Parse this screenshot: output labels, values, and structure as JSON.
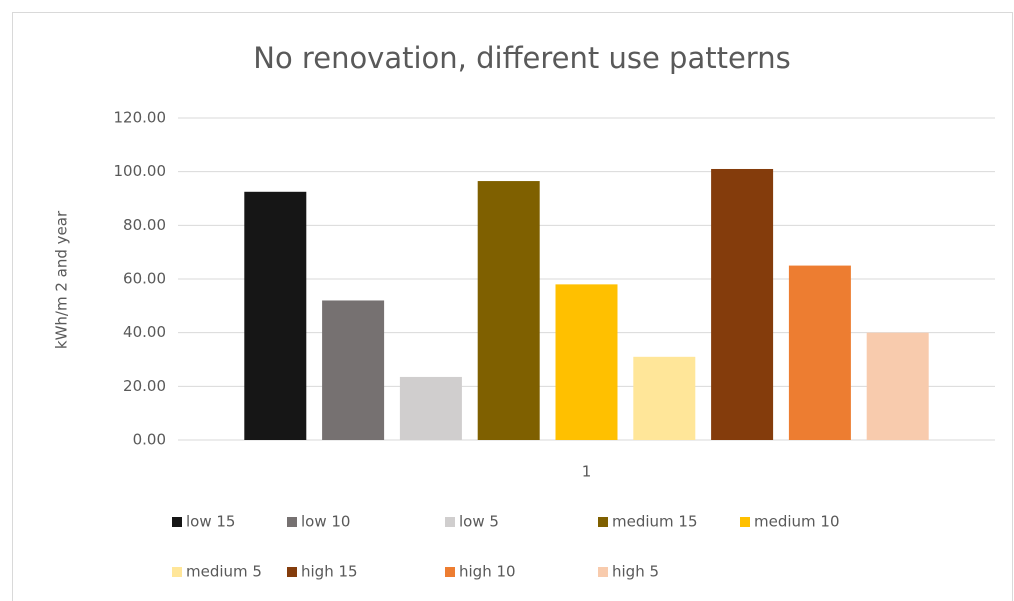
{
  "chart_data": {
    "type": "bar",
    "title": "No renovation, different use patterns",
    "y_label": "kWh/m 2 and year",
    "categories": [
      "1"
    ],
    "series": [
      {
        "name": "low 15",
        "color": "#161616",
        "values": [
          92.5
        ]
      },
      {
        "name": "low 10",
        "color": "#767171",
        "values": [
          52
        ]
      },
      {
        "name": "low 5",
        "color": "#d0cece",
        "values": [
          23.5
        ]
      },
      {
        "name": "medium 15",
        "color": "#7f6000",
        "values": [
          96.5
        ]
      },
      {
        "name": "medium 10",
        "color": "#ffc000",
        "values": [
          58
        ]
      },
      {
        "name": "medium 5",
        "color": "#ffe699",
        "values": [
          31
        ]
      },
      {
        "name": "high 15",
        "color": "#843c0c",
        "values": [
          101
        ]
      },
      {
        "name": "high 10",
        "color": "#ed7d31",
        "values": [
          65
        ]
      },
      {
        "name": "high 5",
        "color": "#f8cbad",
        "values": [
          40
        ]
      }
    ],
    "ylim": [
      0,
      120
    ],
    "yticks": [
      {
        "value": 0,
        "label": "0.00"
      },
      {
        "value": 20,
        "label": "20.00"
      },
      {
        "value": 40,
        "label": "40.00"
      },
      {
        "value": 60,
        "label": "60.00"
      },
      {
        "value": 80,
        "label": "80.00"
      },
      {
        "value": 100,
        "label": "100.00"
      },
      {
        "value": 120,
        "label": "120.00"
      }
    ],
    "grid": true
  }
}
